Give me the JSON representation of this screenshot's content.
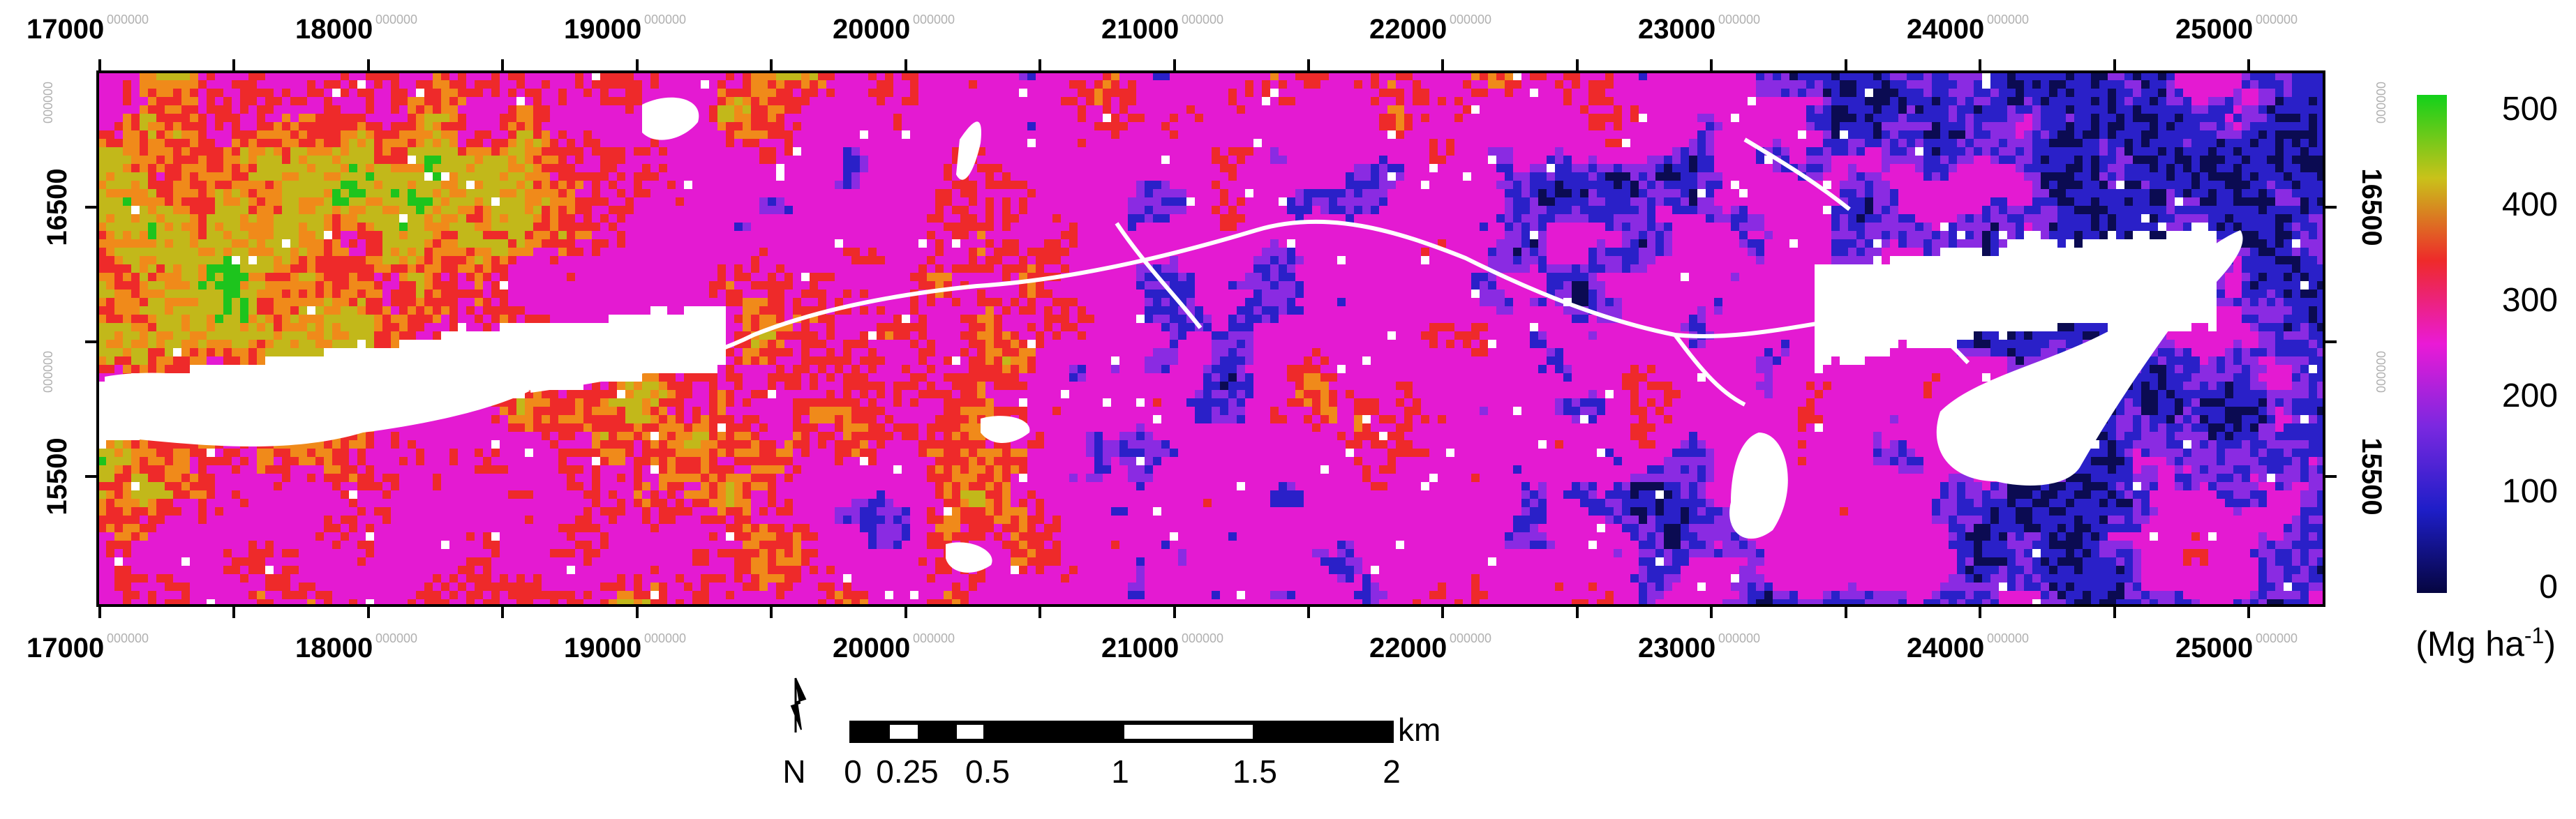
{
  "map": {
    "x_ticks": [
      {
        "label": "17000",
        "superscript": "000000"
      },
      {
        "label": "18000",
        "superscript": "000000"
      },
      {
        "label": "19000",
        "superscript": "000000"
      },
      {
        "label": "20000",
        "superscript": "000000"
      },
      {
        "label": "21000",
        "superscript": "000000"
      },
      {
        "label": "22000",
        "superscript": "000000"
      },
      {
        "label": "23000",
        "superscript": "000000"
      },
      {
        "label": "24000",
        "superscript": "000000"
      },
      {
        "label": "25000",
        "superscript": "000000"
      }
    ],
    "y_ticks": [
      {
        "label": "16500",
        "superscript": "000000"
      },
      {
        "label": "15500",
        "superscript": "000000"
      }
    ],
    "colors": {
      "magenta": "#e41ad2",
      "red": "#ee2a2a",
      "orange": "#f08a1a",
      "olive": "#c2b81a",
      "green": "#1dc41d",
      "purple": "#8a2be2",
      "blue": "#2a20c8",
      "navy": "#0b0b52",
      "nodata": "#ffffff"
    }
  },
  "legend": {
    "ticks": [
      "500",
      "400",
      "300",
      "200",
      "100",
      "0"
    ],
    "unit_main": "(Mg ha",
    "unit_sup": "-1",
    "unit_close": ")",
    "gradient": [
      "#12d11a",
      "#c9c21a",
      "#ee2a2a",
      "#ea1ad6",
      "#7a28e0",
      "#1e1ec8",
      "#050540"
    ]
  },
  "scalebar": {
    "unit": "km",
    "labels": [
      "0",
      "0.25",
      "0.5",
      "1",
      "1.5",
      "2"
    ],
    "north_letter": "N"
  }
}
